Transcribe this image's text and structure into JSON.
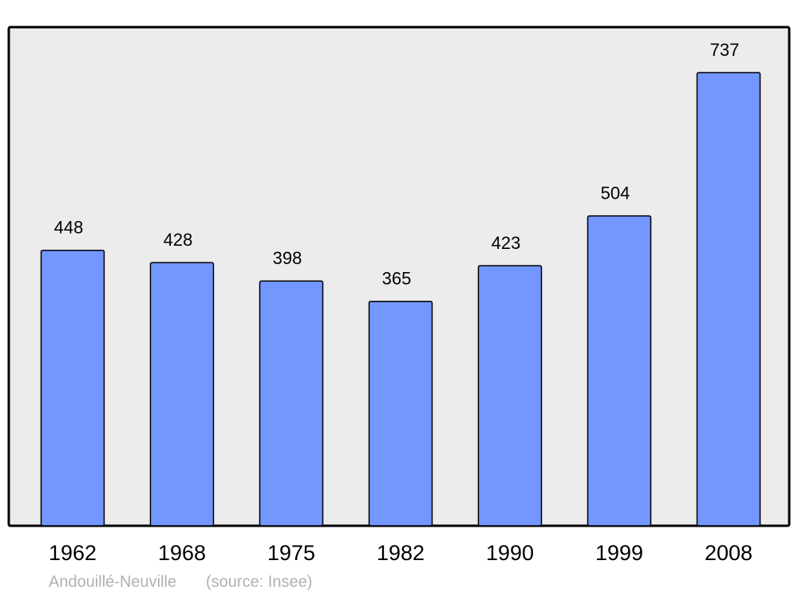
{
  "chart_data": {
    "type": "bar",
    "categories": [
      "1962",
      "1968",
      "1975",
      "1982",
      "1990",
      "1999",
      "2008"
    ],
    "values": [
      448,
      428,
      398,
      365,
      423,
      504,
      737
    ],
    "color": "#7396ff",
    "place": "Andouillé-Neuville",
    "source": "(source: Insee)"
  }
}
